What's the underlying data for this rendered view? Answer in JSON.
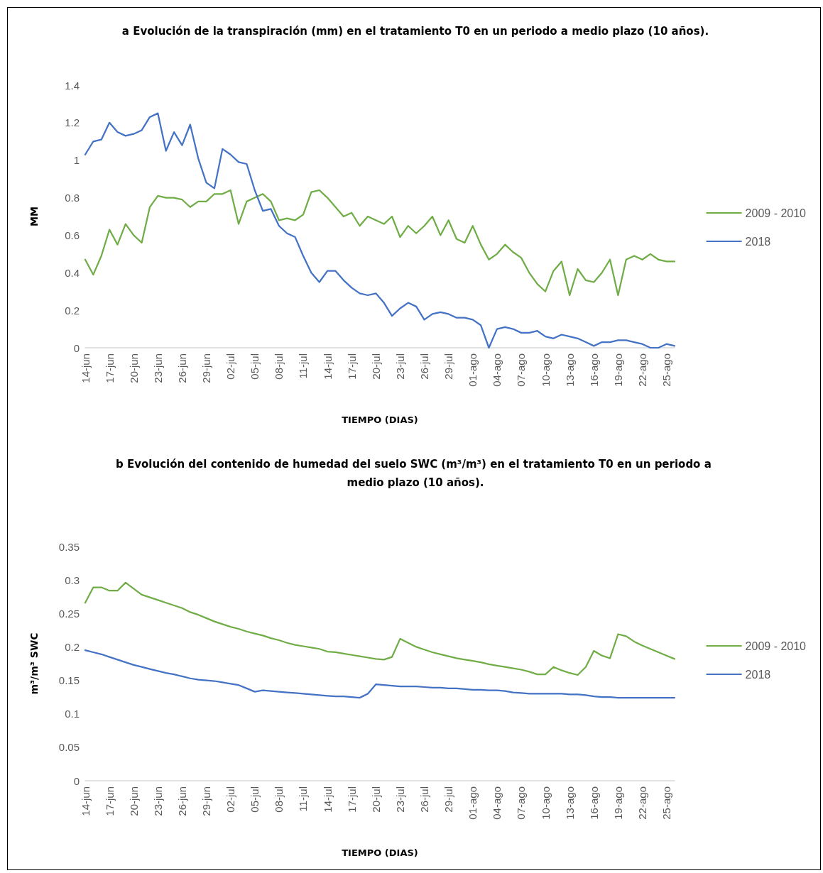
{
  "chart_data": [
    {
      "type": "line",
      "title": "a Evolución de la transpiración (mm) en el tratamiento T0 en un periodo a medio plazo (10 años).",
      "xlabel": "TIEMPO (DIAS)",
      "ylabel": "MM",
      "categories": [
        "14-jun",
        null,
        null,
        "17-jun",
        null,
        null,
        "20-jun",
        null,
        null,
        "23-jun",
        null,
        null,
        "26-jun",
        null,
        null,
        "29-jun",
        null,
        null,
        "02-jul",
        null,
        null,
        "05-jul",
        null,
        null,
        "08-jul",
        null,
        null,
        "11-jul",
        null,
        null,
        "14-jul",
        null,
        null,
        "17-jul",
        null,
        null,
        "20-jul",
        null,
        null,
        "23-jul",
        null,
        null,
        "26-jul",
        null,
        null,
        "29-jul",
        null,
        null,
        "01-ago",
        null,
        null,
        "04-ago",
        null,
        null,
        "07-ago",
        null,
        null,
        "10-ago",
        null,
        null,
        "13-ago",
        null,
        null,
        "16-ago",
        null,
        null,
        "19-ago",
        null,
        null,
        "22-ago",
        null,
        null,
        "25-ago",
        null
      ],
      "series": [
        {
          "name": "2009 - 2010",
          "color": "#70ad47",
          "values": [
            0.47,
            0.39,
            0.49,
            0.63,
            0.55,
            0.66,
            0.6,
            0.56,
            0.75,
            0.81,
            0.8,
            0.8,
            0.79,
            0.75,
            0.78,
            0.78,
            0.82,
            0.82,
            0.84,
            0.66,
            0.78,
            0.8,
            0.82,
            0.78,
            0.68,
            0.69,
            0.68,
            0.71,
            0.83,
            0.84,
            0.8,
            0.75,
            0.7,
            0.72,
            0.65,
            0.7,
            0.68,
            0.66,
            0.7,
            0.59,
            0.65,
            0.61,
            0.65,
            0.7,
            0.6,
            0.68,
            0.58,
            0.56,
            0.65,
            0.55,
            0.47,
            0.5,
            0.55,
            0.51,
            0.48,
            0.4,
            0.34,
            0.3,
            0.41,
            0.46,
            0.28,
            0.42,
            0.36,
            0.35,
            0.4,
            0.47,
            0.28,
            0.47,
            0.49,
            0.47,
            0.5,
            0.47,
            0.46,
            0.46
          ]
        },
        {
          "name": "2018",
          "color": "#4472c4",
          "values": [
            1.03,
            1.1,
            1.11,
            1.2,
            1.15,
            1.13,
            1.14,
            1.16,
            1.23,
            1.25,
            1.05,
            1.15,
            1.08,
            1.19,
            1.01,
            0.88,
            0.85,
            1.06,
            1.03,
            0.99,
            0.98,
            0.84,
            0.73,
            0.74,
            0.65,
            0.61,
            0.59,
            0.49,
            0.4,
            0.35,
            0.41,
            0.41,
            0.36,
            0.32,
            0.29,
            0.28,
            0.29,
            0.24,
            0.17,
            0.21,
            0.24,
            0.22,
            0.15,
            0.18,
            0.19,
            0.18,
            0.16,
            0.16,
            0.15,
            0.12,
            0.0,
            0.1,
            0.11,
            0.1,
            0.08,
            0.08,
            0.09,
            0.06,
            0.05,
            0.07,
            0.06,
            0.05,
            0.03,
            0.01,
            0.03,
            0.03,
            0.04,
            0.04,
            0.03,
            0.02,
            0.0,
            0.0,
            0.02,
            0.01
          ]
        }
      ],
      "ylim": [
        0,
        1.4
      ],
      "yticks": [
        0,
        0.2,
        0.4,
        0.6,
        0.8,
        1,
        1.2,
        1.4
      ],
      "grid": false,
      "legend": "right",
      "marker": "none",
      "line_style": "solid"
    },
    {
      "type": "line",
      "title": "b Evolución del contenido de humedad del suelo SWC (m³/m³) en el tratamiento T0 en un periodo a medio plazo (10 años).",
      "xlabel": "TIEMPO (DIAS)",
      "ylabel": "m³/m³ SWC",
      "categories": [
        "14-jun",
        null,
        null,
        "17-jun",
        null,
        null,
        "20-jun",
        null,
        null,
        "23-jun",
        null,
        null,
        "26-jun",
        null,
        null,
        "29-jun",
        null,
        null,
        "02-jul",
        null,
        null,
        "05-jul",
        null,
        null,
        "08-jul",
        null,
        null,
        "11-jul",
        null,
        null,
        "14-jul",
        null,
        null,
        "17-jul",
        null,
        null,
        "20-jul",
        null,
        null,
        "23-jul",
        null,
        null,
        "26-jul",
        null,
        null,
        "29-jul",
        null,
        null,
        "01-ago",
        null,
        null,
        "04-ago",
        null,
        null,
        "07-ago",
        null,
        null,
        "10-ago",
        null,
        null,
        "13-ago",
        null,
        null,
        "16-ago",
        null,
        null,
        "19-ago",
        null,
        null,
        "22-ago",
        null,
        null,
        "25-ago",
        null
      ],
      "series": [
        {
          "name": "2009 - 2010",
          "color": "#70ad47",
          "values": [
            0.266,
            0.289,
            0.289,
            0.284,
            0.284,
            0.296,
            0.287,
            0.278,
            0.274,
            0.27,
            0.266,
            0.262,
            0.258,
            0.252,
            0.248,
            0.243,
            0.238,
            0.234,
            0.23,
            0.227,
            0.223,
            0.22,
            0.217,
            0.213,
            0.21,
            0.206,
            0.203,
            0.201,
            0.199,
            0.197,
            0.193,
            0.192,
            0.19,
            0.188,
            0.186,
            0.184,
            0.182,
            0.181,
            0.185,
            0.212,
            0.206,
            0.2,
            0.196,
            0.192,
            0.189,
            0.186,
            0.183,
            0.181,
            0.179,
            0.177,
            0.174,
            0.172,
            0.17,
            0.168,
            0.166,
            0.163,
            0.159,
            0.159,
            0.17,
            0.165,
            0.161,
            0.158,
            0.17,
            0.194,
            0.187,
            0.183,
            0.219,
            0.216,
            0.208,
            0.202,
            0.197,
            0.192,
            0.187,
            0.182
          ]
        },
        {
          "name": "2018",
          "color": "#4472c4",
          "values": [
            0.195,
            0.192,
            0.189,
            0.185,
            0.181,
            0.177,
            0.173,
            0.17,
            0.167,
            0.164,
            0.161,
            0.159,
            0.156,
            0.153,
            0.151,
            0.15,
            0.149,
            0.147,
            0.145,
            0.143,
            0.138,
            0.133,
            0.135,
            0.134,
            0.133,
            0.132,
            0.131,
            0.13,
            0.129,
            0.128,
            0.127,
            0.126,
            0.126,
            0.125,
            0.124,
            0.13,
            0.144,
            0.143,
            0.142,
            0.141,
            0.141,
            0.141,
            0.14,
            0.139,
            0.139,
            0.138,
            0.138,
            0.137,
            0.136,
            0.136,
            0.135,
            0.135,
            0.134,
            0.132,
            0.131,
            0.13,
            0.13,
            0.13,
            0.13,
            0.13,
            0.129,
            0.129,
            0.128,
            0.126,
            0.125,
            0.125,
            0.124,
            0.124,
            0.124,
            0.124,
            0.124,
            0.124,
            0.124,
            0.124
          ]
        }
      ],
      "ylim": [
        0,
        0.35
      ],
      "yticks": [
        0,
        0.05,
        0.1,
        0.15,
        0.2,
        0.25,
        0.3,
        0.35
      ],
      "grid": false,
      "legend": "right",
      "marker": "none",
      "line_style": "solid"
    }
  ]
}
